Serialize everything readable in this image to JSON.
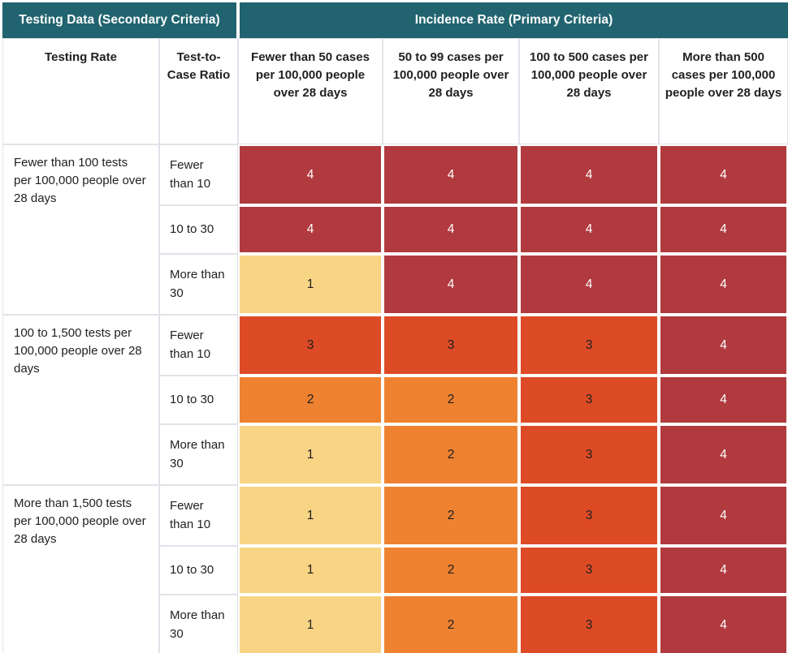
{
  "table": {
    "header_groups": [
      {
        "label": "Testing Data (Secondary Criteria)",
        "colspan": 2
      },
      {
        "label": "Incidence Rate (Primary Criteria)",
        "colspan": 4
      }
    ],
    "columns": [
      "Testing Rate",
      "Test-to-Case Ratio",
      "Fewer than 50 cases per 100,000 people over 28 days",
      "50 to 99 cases per 100,000 people over 28 days",
      "100 to 500 cases per 100,000 people over 28 days",
      "More than 500 cases per 100,000 people over 28 days"
    ],
    "groups": [
      {
        "testing_rate": "Fewer than 100 tests per 100,000 people over 28 days",
        "rows": [
          {
            "ratio": "Fewer than 10",
            "scores": [
              4,
              4,
              4,
              4
            ]
          },
          {
            "ratio": "10 to 30",
            "scores": [
              4,
              4,
              4,
              4
            ]
          },
          {
            "ratio": "More than 30",
            "scores": [
              1,
              4,
              4,
              4
            ]
          }
        ]
      },
      {
        "testing_rate": "100 to 1,500 tests per 100,000 people over 28 days",
        "rows": [
          {
            "ratio": "Fewer than 10",
            "scores": [
              3,
              3,
              3,
              4
            ]
          },
          {
            "ratio": "10 to 30",
            "scores": [
              2,
              2,
              3,
              4
            ]
          },
          {
            "ratio": "More than 30",
            "scores": [
              1,
              2,
              3,
              4
            ]
          }
        ]
      },
      {
        "testing_rate": "More than 1,500 tests per 100,000 people over 28 days",
        "rows": [
          {
            "ratio": "Fewer than 10",
            "scores": [
              1,
              2,
              3,
              4
            ]
          },
          {
            "ratio": "10 to 30",
            "scores": [
              1,
              2,
              3,
              4
            ]
          },
          {
            "ratio": "More than 30",
            "scores": [
              1,
              2,
              3,
              4
            ]
          }
        ]
      }
    ]
  },
  "colors": {
    "header_teal": "#216470",
    "score_1": "#f8d485",
    "score_2": "#ee8231",
    "score_3": "#dd4b26",
    "score_4": "#b03a3e",
    "score_text_dark": "#1e1e1e",
    "score_text_light": "#ffffff",
    "cell_border": "#e2e3ea"
  },
  "chart_data": {
    "type": "heatmap",
    "title": "Risk matrix: Incidence Rate (Primary Criteria) vs Testing Data (Secondary Criteria)",
    "columns": [
      "Fewer than 50 cases per 100,000 people over 28 days",
      "50 to 99 cases per 100,000 people over 28 days",
      "100 to 500 cases per 100,000 people over 28 days",
      "More than 500 cases per 100,000 people over 28 days"
    ],
    "rows": [
      {
        "testing_rate": "Fewer than 100 tests per 100,000 people over 28 days",
        "test_to_case_ratio": "Fewer than 10"
      },
      {
        "testing_rate": "Fewer than 100 tests per 100,000 people over 28 days",
        "test_to_case_ratio": "10 to 30"
      },
      {
        "testing_rate": "Fewer than 100 tests per 100,000 people over 28 days",
        "test_to_case_ratio": "More than 30"
      },
      {
        "testing_rate": "100 to 1,500 tests per 100,000 people over 28 days",
        "test_to_case_ratio": "Fewer than 10"
      },
      {
        "testing_rate": "100 to 1,500 tests per 100,000 people over 28 days",
        "test_to_case_ratio": "10 to 30"
      },
      {
        "testing_rate": "100 to 1,500 tests per 100,000 people over 28 days",
        "test_to_case_ratio": "More than 30"
      },
      {
        "testing_rate": "More than 1,500 tests per 100,000 people over 28 days",
        "test_to_case_ratio": "Fewer than 10"
      },
      {
        "testing_rate": "More than 1,500 tests per 100,000 people over 28 days",
        "test_to_case_ratio": "10 to 30"
      },
      {
        "testing_rate": "More than 1,500 tests per 100,000 people over 28 days",
        "test_to_case_ratio": "More than 30"
      }
    ],
    "values": [
      [
        4,
        4,
        4,
        4
      ],
      [
        4,
        4,
        4,
        4
      ],
      [
        1,
        4,
        4,
        4
      ],
      [
        3,
        3,
        3,
        4
      ],
      [
        2,
        2,
        3,
        4
      ],
      [
        1,
        2,
        3,
        4
      ],
      [
        1,
        2,
        3,
        4
      ],
      [
        1,
        2,
        3,
        4
      ],
      [
        1,
        2,
        3,
        4
      ]
    ],
    "value_range": [
      1,
      4
    ],
    "value_colors": {
      "1": "#f8d485",
      "2": "#ee8231",
      "3": "#dd4b26",
      "4": "#b03a3e"
    }
  }
}
